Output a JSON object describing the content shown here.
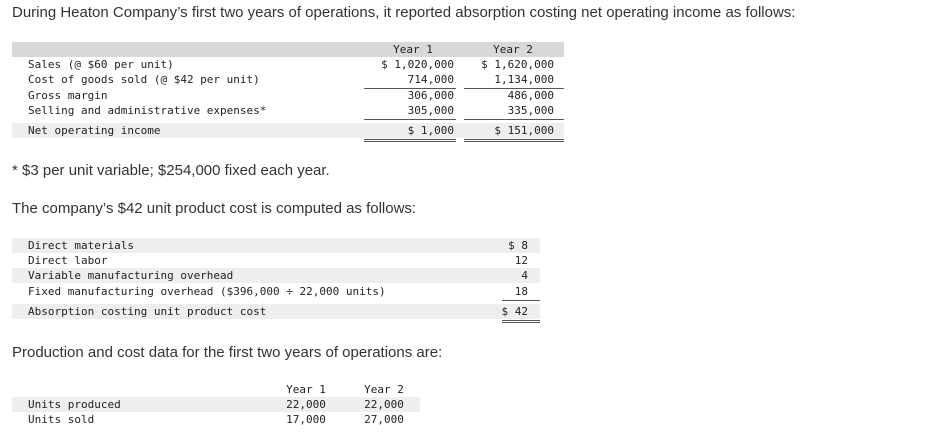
{
  "intro": "During Heaton Company’s first two years of operations, it reported absorption costing net operating income as follows:",
  "income_table": {
    "headers": [
      "Year 1",
      "Year 2"
    ],
    "rows": [
      {
        "label": "Sales (@ $60 per unit)",
        "y1": "$ 1,020,000",
        "y2": "$ 1,620,000"
      },
      {
        "label": "Cost of goods sold (@ $42 per unit)",
        "y1": "714,000",
        "y2": "1,134,000"
      },
      {
        "label": "Gross margin",
        "y1": "306,000",
        "y2": "486,000"
      },
      {
        "label": "Selling and administrative expenses*",
        "y1": "305,000",
        "y2": "335,000"
      },
      {
        "label": "Net operating income",
        "y1": "$ 1,000",
        "y2": "$ 151,000"
      }
    ]
  },
  "footnote": "* $3 per unit variable; $254,000 fixed each year.",
  "unit_cost_intro": "The company’s $42 unit product cost is computed as follows:",
  "unit_cost_table": {
    "rows": [
      {
        "label": "Direct materials",
        "value": "$ 8"
      },
      {
        "label": "Direct labor",
        "value": "12"
      },
      {
        "label": "Variable manufacturing overhead",
        "value": "4"
      },
      {
        "label": "Fixed manufacturing overhead ($396,000 ÷ 22,000 units)",
        "value": "18"
      },
      {
        "label": "Absorption costing unit product cost",
        "value": "$ 42"
      }
    ]
  },
  "production_intro": "Production and cost data for the first two years of operations are:",
  "production_table": {
    "headers": [
      "Year 1",
      "Year 2"
    ],
    "rows": [
      {
        "label": "Units produced",
        "y1": "22,000",
        "y2": "22,000"
      },
      {
        "label": "Units sold",
        "y1": "17,000",
        "y2": "27,000"
      }
    ]
  }
}
